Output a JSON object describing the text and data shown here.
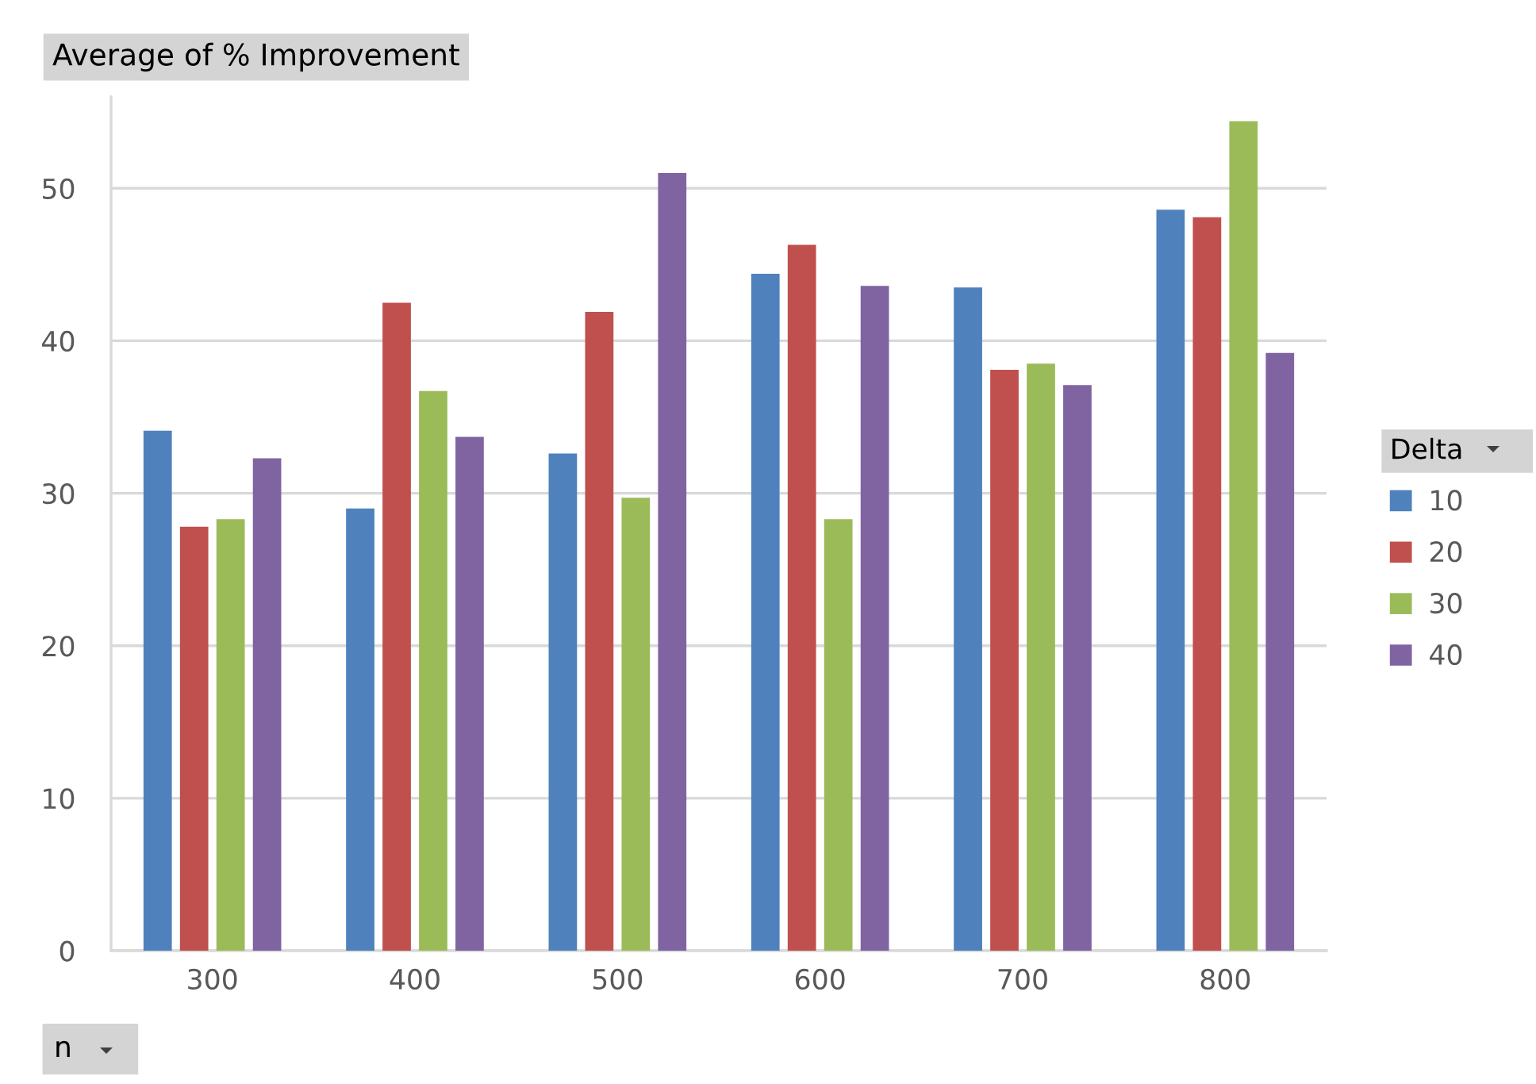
{
  "chart_data": {
    "type": "bar",
    "title": "Average of % Improvement",
    "xlabel": "n",
    "legend_title": "Delta",
    "categories": [
      "300",
      "400",
      "500",
      "600",
      "700",
      "800"
    ],
    "series": [
      {
        "name": "10",
        "color": "#4f81bd",
        "values": [
          34.1,
          29.0,
          32.6,
          44.4,
          43.5,
          48.6
        ]
      },
      {
        "name": "20",
        "color": "#c0504d",
        "values": [
          27.8,
          42.5,
          41.9,
          46.3,
          38.1,
          48.1
        ]
      },
      {
        "name": "30",
        "color": "#9bbb59",
        "values": [
          28.3,
          36.7,
          29.7,
          28.3,
          38.5,
          54.4
        ]
      },
      {
        "name": "40",
        "color": "#8064a2",
        "values": [
          32.3,
          33.7,
          51.0,
          43.6,
          37.1,
          39.2
        ]
      }
    ],
    "ylim": [
      0,
      56
    ],
    "yticks": [
      0,
      10,
      20,
      30,
      40,
      50
    ],
    "grid": "y",
    "legend": "right"
  }
}
